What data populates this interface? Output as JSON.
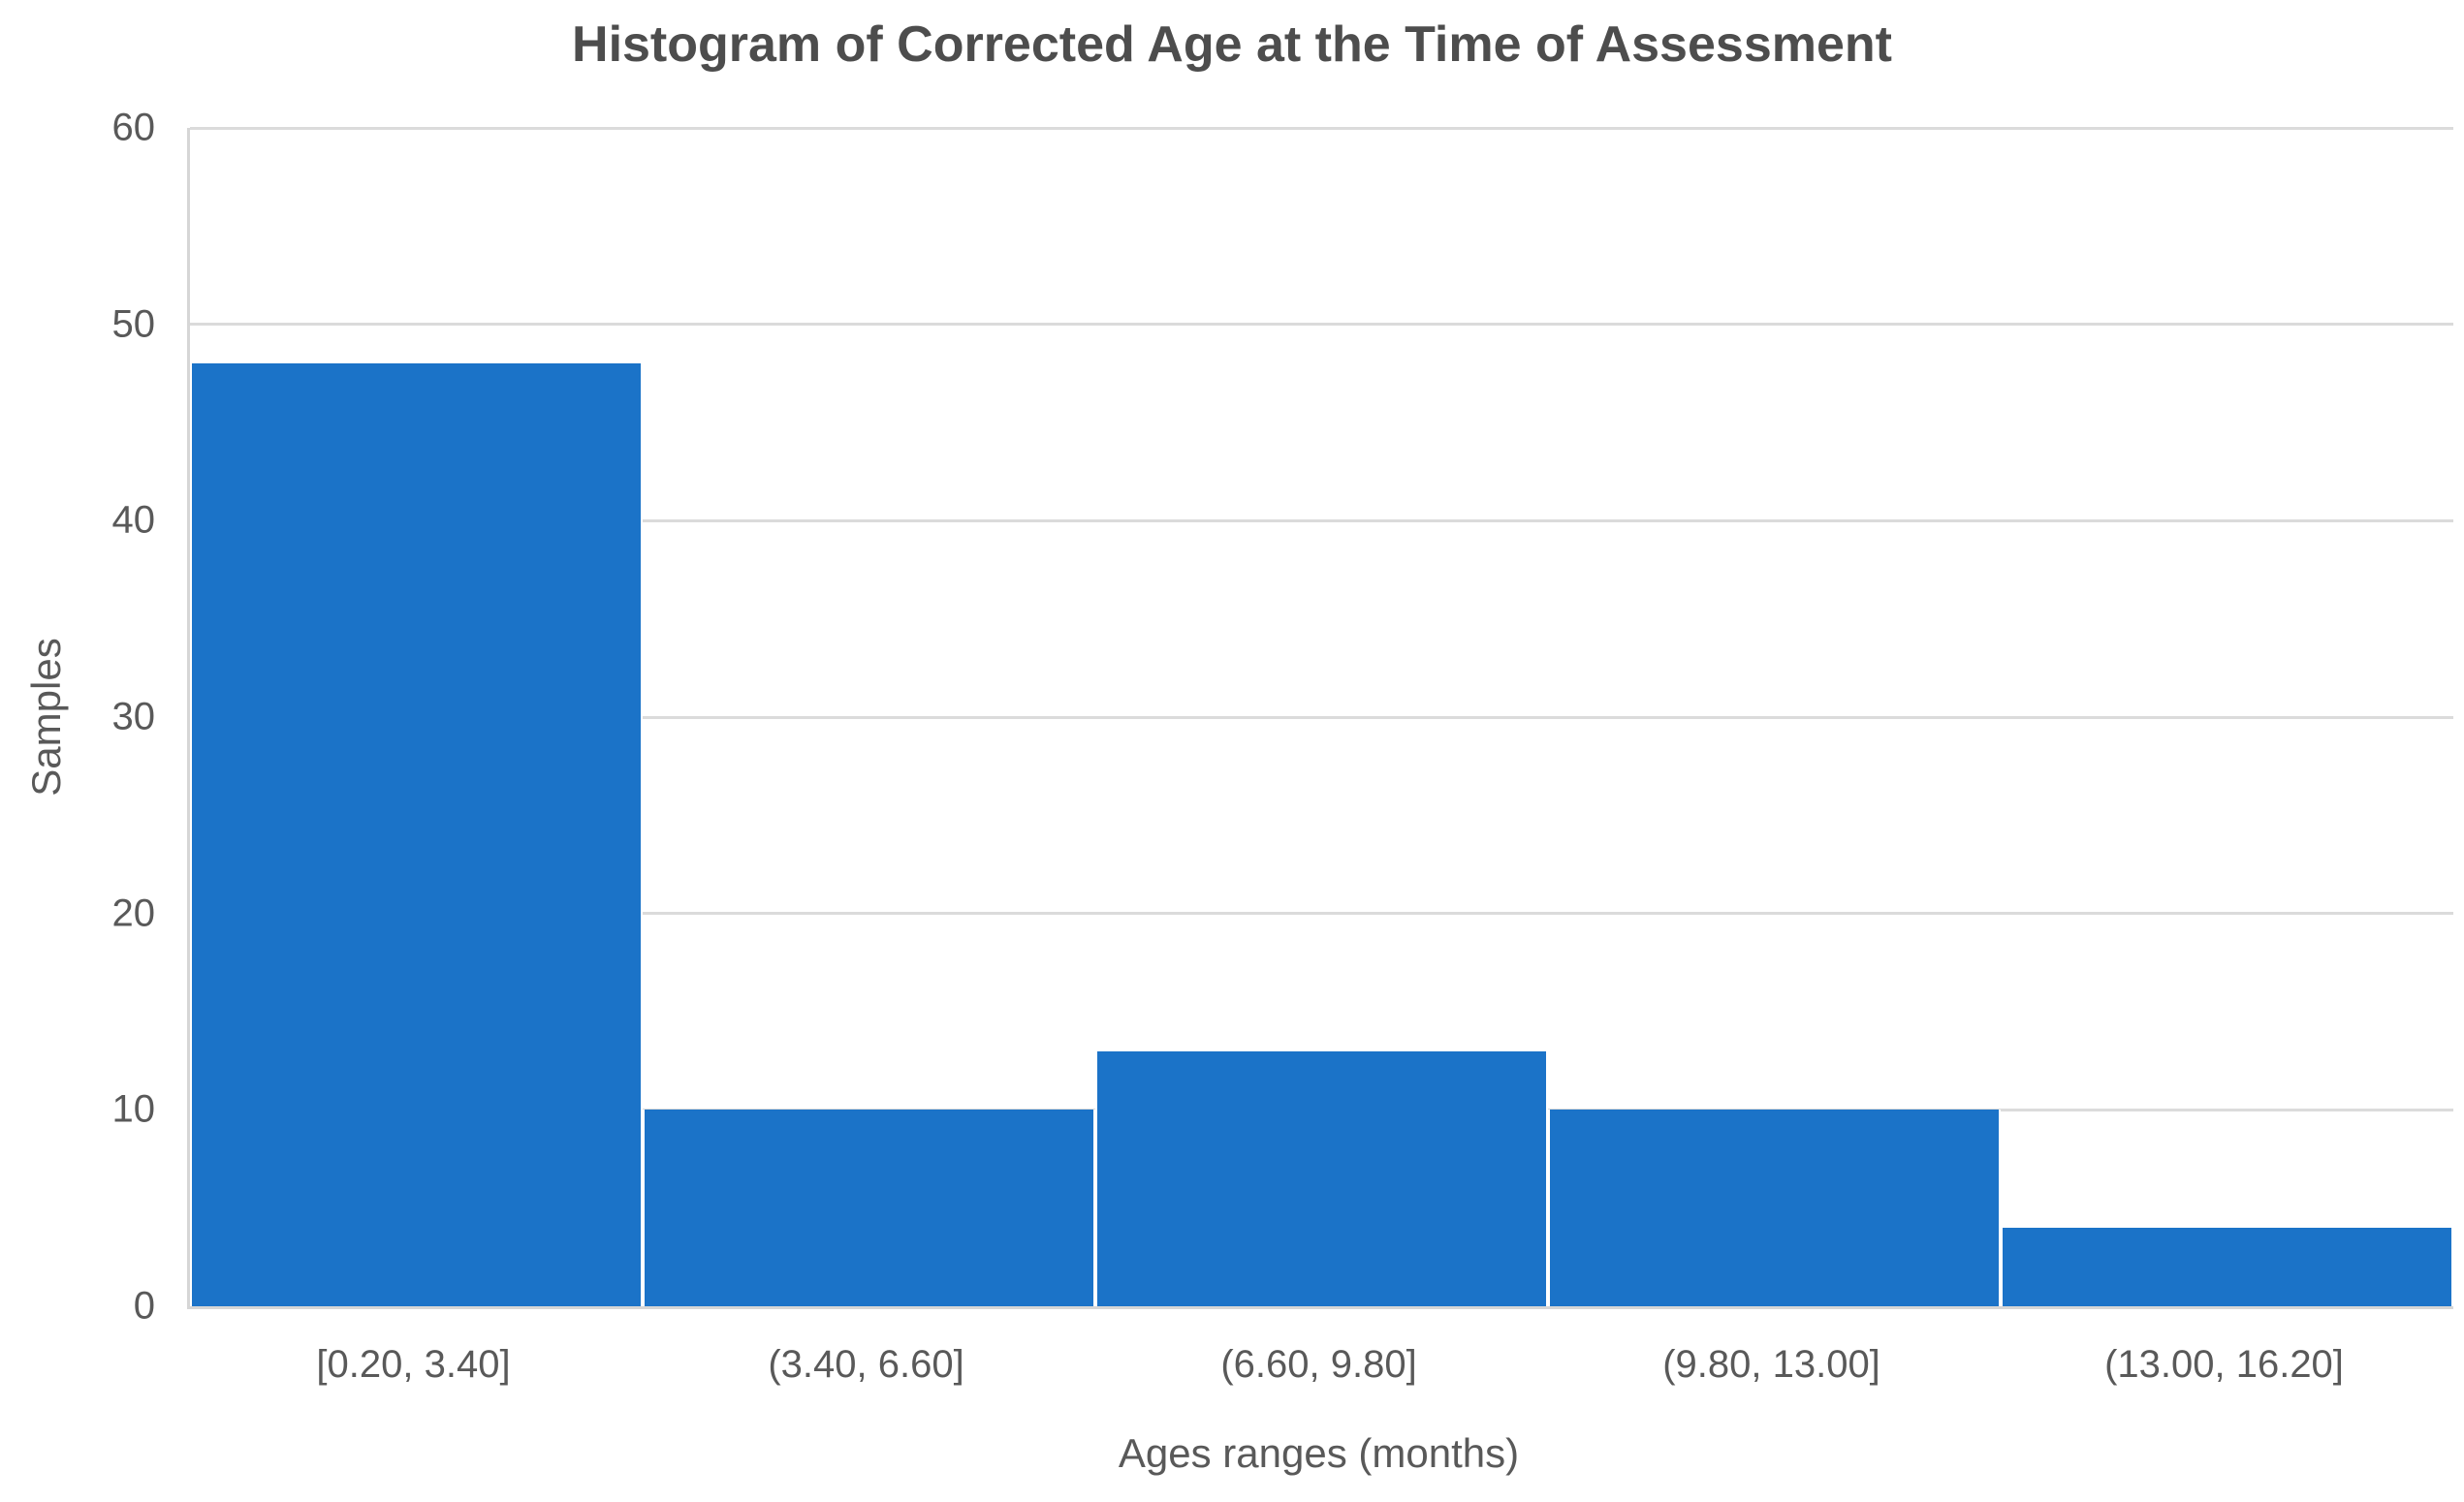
{
  "chart_data": {
    "type": "bar",
    "subtype": "histogram",
    "title": "Histogram of Corrected Age at the Time of Assessment",
    "xlabel": "Ages ranges (months)",
    "ylabel": "Samples",
    "categories": [
      "[0.20, 3.40]",
      "(3.40, 6.60]",
      "(6.60, 9.80]",
      "(9.80, 13.00]",
      "(13.00, 16.20]"
    ],
    "values": [
      48,
      10,
      13,
      10,
      4
    ],
    "ylim": [
      0,
      60
    ],
    "yticks": [
      0,
      10,
      20,
      30,
      40,
      50,
      60
    ],
    "grid": "horizontal",
    "legend": "none",
    "colors": {
      "bar": "#1b73c8",
      "gridline": "#dbdbdb",
      "axis_line": "#d6d6d6",
      "title_text": "#4d4d4d",
      "label_text": "#595959",
      "background": "#ffffff"
    }
  }
}
